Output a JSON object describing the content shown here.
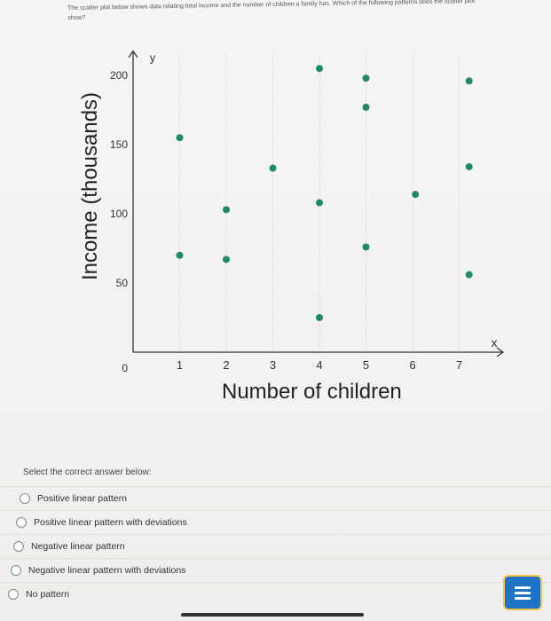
{
  "question": {
    "text": "The scatter plot below shows data relating total income and the number of children a family has. Which of the following patterns does the scatter plot show?"
  },
  "chart_data": {
    "type": "scatter",
    "xlabel": "Number of children",
    "ylabel": "Income (thousands)",
    "x_axis_letter": "x",
    "y_axis_letter": "y",
    "x_ticks": [
      "1",
      "2",
      "3",
      "4",
      "5",
      "6",
      "7"
    ],
    "y_ticks": [
      "0",
      "50",
      "100",
      "150",
      "200"
    ],
    "xlim": [
      0,
      7.6
    ],
    "ylim": [
      0,
      215
    ],
    "grid": "vertical dotted",
    "point_color": "#1f8a6b",
    "points": [
      {
        "x": 1,
        "y": 155
      },
      {
        "x": 1,
        "y": 70
      },
      {
        "x": 2,
        "y": 103
      },
      {
        "x": 2,
        "y": 67
      },
      {
        "x": 3,
        "y": 133
      },
      {
        "x": 4,
        "y": 205
      },
      {
        "x": 4,
        "y": 108
      },
      {
        "x": 4,
        "y": 25
      },
      {
        "x": 5,
        "y": 198
      },
      {
        "x": 5,
        "y": 177
      },
      {
        "x": 5,
        "y": 76
      },
      {
        "x": 6,
        "y": 114
      },
      {
        "x": 7,
        "y": 196
      },
      {
        "x": 7,
        "y": 134
      },
      {
        "x": 7,
        "y": 56
      }
    ]
  },
  "answer": {
    "prompt": "Select the correct answer below:",
    "options": [
      "Positive linear pattern",
      "Positive linear pattern with deviations",
      "Negative linear pattern",
      "Negative linear pattern with deviations",
      "No pattern"
    ]
  },
  "icons": {
    "menu": "menu-lines-icon"
  },
  "colors": {
    "menu_button": "#1e73c8",
    "menu_border": "#f4c54a"
  }
}
